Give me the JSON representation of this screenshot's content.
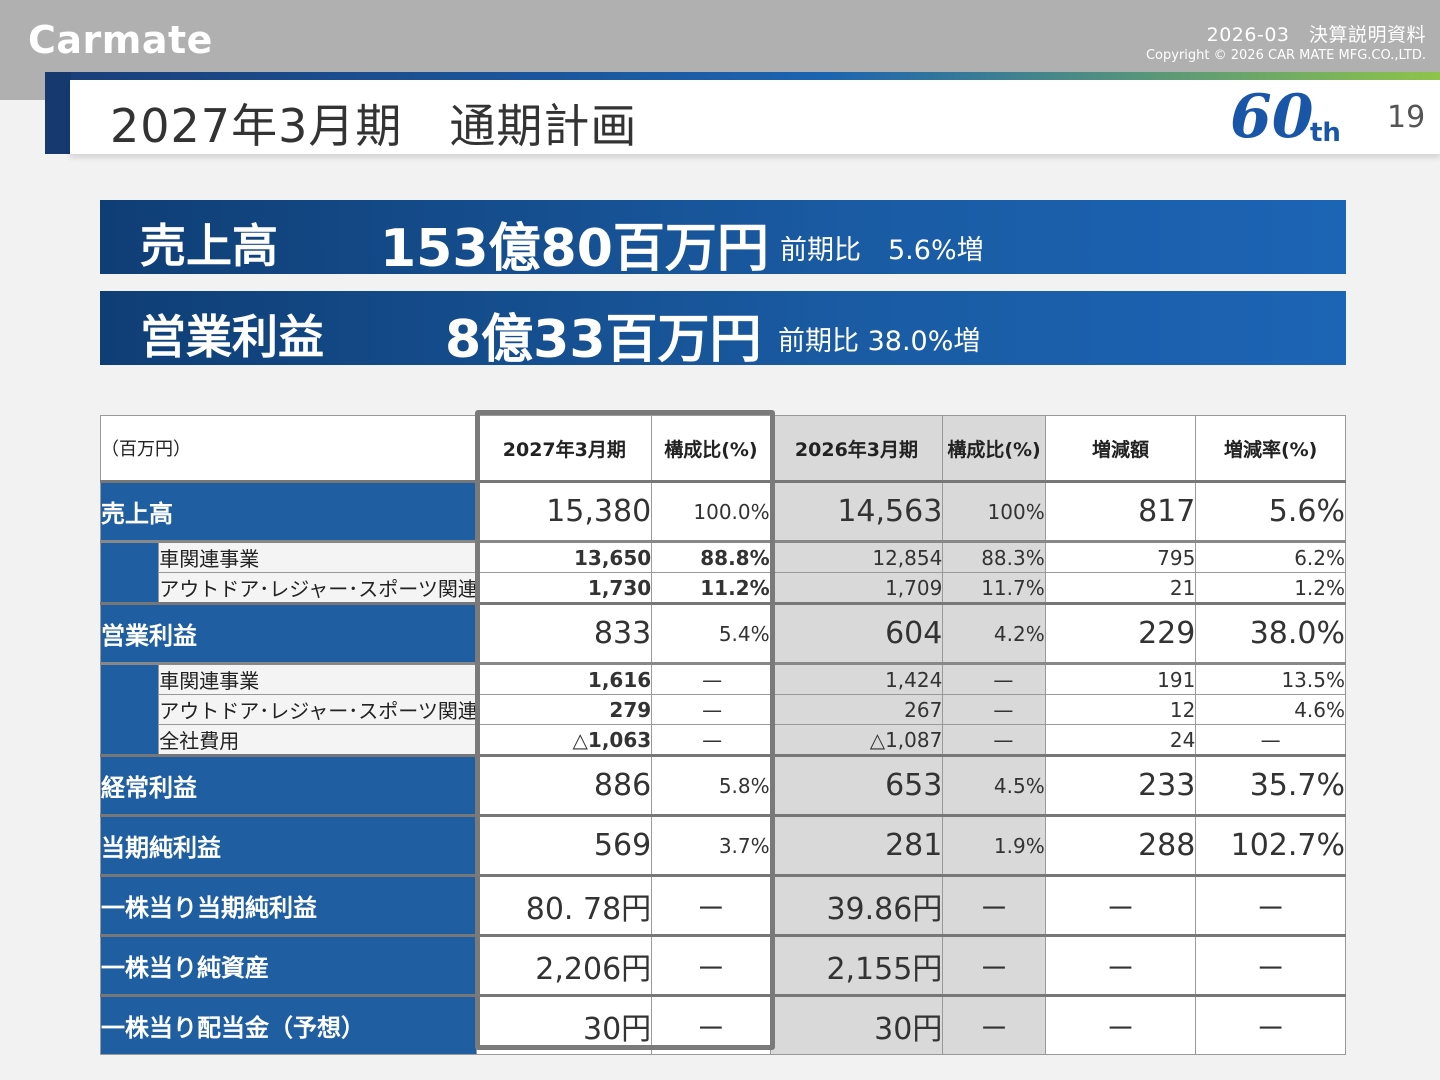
{
  "header": {
    "logo": "Carmate",
    "doc_title": "2026-03　決算説明資料",
    "copyright": "Copyright © 2026 CAR MATE MFG.CO.,LTD.",
    "page_title": "2027年3月期　通期計画",
    "badge_number": "60",
    "badge_suffix": "th",
    "page_number": "19"
  },
  "banners": [
    {
      "label": "売上高",
      "value": "153億80百万円",
      "comparison": "前期比　5.6%増"
    },
    {
      "label": "営業利益",
      "value": "8億33百万円",
      "comparison": "前期比 38.0%増"
    }
  ],
  "table": {
    "unit": "（百万円）",
    "columns": [
      "2027年3月期",
      "構成比(%)",
      "2026年3月期",
      "構成比(%)",
      "増減額",
      "増減率(%)"
    ],
    "rows": {
      "sales": {
        "label": "売上高",
        "values": [
          "15,380",
          "100.0%",
          "14,563",
          "100%",
          "817",
          "5.6%"
        ]
      },
      "sales_car": {
        "label": "車関連事業",
        "values": [
          "13,650",
          "88.8%",
          "12,854",
          "88.3%",
          "795",
          "6.2%"
        ]
      },
      "sales_outdoor": {
        "label": "アウトドア･レジャー･スポーツ関連",
        "values": [
          "1,730",
          "11.2%",
          "1,709",
          "11.7%",
          "21",
          "1.2%"
        ]
      },
      "op": {
        "label": "営業利益",
        "values": [
          "833",
          "5.4%",
          "604",
          "4.2%",
          "229",
          "38.0%"
        ]
      },
      "op_car": {
        "label": "車関連事業",
        "values": [
          "1,616",
          "—",
          "1,424",
          "—",
          "191",
          "13.5%"
        ]
      },
      "op_outdoor": {
        "label": "アウトドア･レジャー･スポーツ関連",
        "values": [
          "279",
          "—",
          "267",
          "—",
          "12",
          "4.6%"
        ]
      },
      "op_corp": {
        "label": "全社費用",
        "values": [
          "△1,063",
          "—",
          "△1,087",
          "—",
          "24",
          "—"
        ]
      },
      "ordinary": {
        "label": "経常利益",
        "values": [
          "886",
          "5.8%",
          "653",
          "4.5%",
          "233",
          "35.7%"
        ]
      },
      "net": {
        "label": "当期純利益",
        "values": [
          "569",
          "3.7%",
          "281",
          "1.9%",
          "288",
          "102.7%"
        ]
      },
      "eps": {
        "label": "一株当り当期純利益",
        "values": [
          "80. 78円",
          "－",
          "39.86円",
          "－",
          "－",
          "－"
        ]
      },
      "bps": {
        "label": "一株当り純資産",
        "values": [
          "2,206円",
          "－",
          "2,155円",
          "－",
          "－",
          "－"
        ]
      },
      "dps": {
        "label": "一株当り配当金（予想）",
        "values": [
          "30円",
          "－",
          "30円",
          "－",
          "－",
          "－"
        ]
      }
    }
  },
  "colors": {
    "primary": "#1f5ea0",
    "dark_blue": "#163a70",
    "header_gray": "#b0b0b0",
    "accent_green": "#8ec449"
  }
}
